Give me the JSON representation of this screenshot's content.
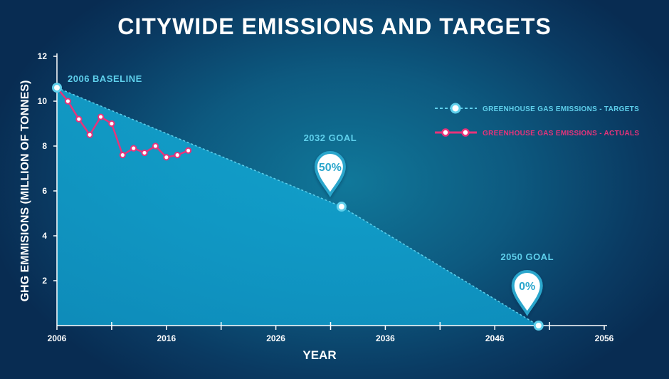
{
  "chart_data": {
    "type": "area",
    "title": "CITYWIDE EMISSIONS AND TARGETS",
    "xlabel": "YEAR",
    "ylabel": "GHG EMMISIONS (MILLION OF TONNES)",
    "xlim": [
      2006,
      2056
    ],
    "ylim": [
      0,
      12
    ],
    "x_tick_labels": [
      "2006",
      "2016",
      "2026",
      "2036",
      "2046",
      "2056"
    ],
    "x_tick_label_values": [
      2006,
      2016,
      2026,
      2036,
      2046,
      2056
    ],
    "x_minor_ticks": [
      2011,
      2021,
      2031,
      2041,
      2051
    ],
    "y_tick_labels": [
      "2",
      "4",
      "6",
      "8",
      "10",
      "12"
    ],
    "y_tick_label_values": [
      2,
      4,
      6,
      8,
      10,
      12
    ],
    "legend_position": "top-right",
    "series": [
      {
        "name": "GREENHOUSE GAS EMISSIONS - TARGETS",
        "style": "dashed",
        "color": "#5fd0ec",
        "x": [
          2006,
          2032,
          2050
        ],
        "y": [
          10.6,
          5.3,
          0
        ]
      },
      {
        "name": "GREENHOUSE GAS EMISSIONS - ACTUALS",
        "style": "solid",
        "color": "#e8337a",
        "x": [
          2006,
          2007,
          2008,
          2009,
          2010,
          2011,
          2012,
          2013,
          2014,
          2015,
          2016,
          2017,
          2018
        ],
        "y": [
          10.6,
          10.0,
          9.2,
          8.5,
          9.3,
          9.0,
          7.6,
          7.9,
          7.7,
          8.0,
          7.5,
          7.6,
          7.8
        ]
      }
    ],
    "annotations": [
      {
        "label": "2006 BASELINE",
        "x": 2006,
        "y": 10.6
      },
      {
        "label": "2032 GOAL",
        "pin": "50%",
        "x": 2032,
        "y": 5.3
      },
      {
        "label": "2050 GOAL",
        "pin": "0%",
        "x": 2050,
        "y": 0
      }
    ]
  }
}
